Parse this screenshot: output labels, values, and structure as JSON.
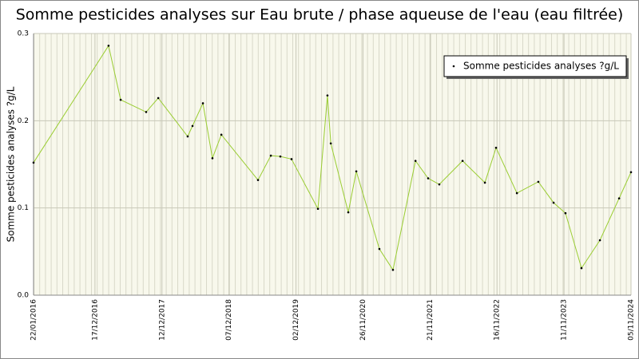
{
  "chart_data": {
    "type": "line",
    "title": "Somme pesticides analyses sur Eau brute / phase aqueuse de l'eau (eau filtrée)",
    "y_label": "Somme pesticides analyses ?g/L",
    "legend": "top-right",
    "grid": true,
    "x": [
      "2016-01-22",
      "2017-02-28",
      "2017-05-04",
      "2017-09-18",
      "2017-11-22",
      "2018-04-29",
      "2018-05-25",
      "2018-07-20",
      "2018-09-09",
      "2018-10-27",
      "2019-05-12",
      "2019-07-20",
      "2019-09-09",
      "2019-11-08",
      "2020-03-29",
      "2020-05-19",
      "2020-06-06",
      "2020-09-08",
      "2020-10-21",
      "2021-02-22",
      "2021-05-06",
      "2021-09-04",
      "2021-11-11",
      "2022-01-10",
      "2022-05-15",
      "2022-09-12",
      "2022-11-11",
      "2023-03-03",
      "2023-06-26",
      "2023-09-16",
      "2023-11-19",
      "2024-02-13",
      "2024-05-22",
      "2024-09-02",
      "2024-11-05"
    ],
    "series": [
      {
        "name": "Somme pesticides analyses ?g/L",
        "color": "#9acd32",
        "values": [
          0.152,
          0.286,
          0.224,
          0.21,
          0.226,
          0.182,
          0.194,
          0.22,
          0.157,
          0.184,
          0.132,
          0.16,
          0.159,
          0.156,
          0.099,
          0.229,
          0.174,
          0.095,
          0.142,
          0.053,
          0.029,
          0.154,
          0.134,
          0.127,
          0.154,
          0.129,
          0.169,
          0.117,
          0.13,
          0.106,
          0.094,
          0.031,
          0.063,
          0.111,
          0.141
        ]
      }
    ],
    "xlim": [
      "2016-01-22",
      "2024-11-05"
    ],
    "xticks": [
      {
        "value": "2016-01-22",
        "label": "22/01/2016"
      },
      {
        "value": "2016-12-17",
        "label": "17/12/2016"
      },
      {
        "value": "2017-12-12",
        "label": "12/12/2017"
      },
      {
        "value": "2018-12-07",
        "label": "07/12/2018"
      },
      {
        "value": "2019-12-02",
        "label": "02/12/2019"
      },
      {
        "value": "2020-11-26",
        "label": "26/11/2020"
      },
      {
        "value": "2021-11-21",
        "label": "21/11/2021"
      },
      {
        "value": "2022-11-16",
        "label": "16/11/2022"
      },
      {
        "value": "2023-11-11",
        "label": "11/11/2023"
      },
      {
        "value": "2024-11-05",
        "label": "05/11/2024"
      }
    ],
    "ylim": [
      0,
      0.3
    ],
    "yticks": [
      {
        "value": 0,
        "label": "0.0"
      },
      0.1,
      0.2,
      0.3
    ]
  }
}
